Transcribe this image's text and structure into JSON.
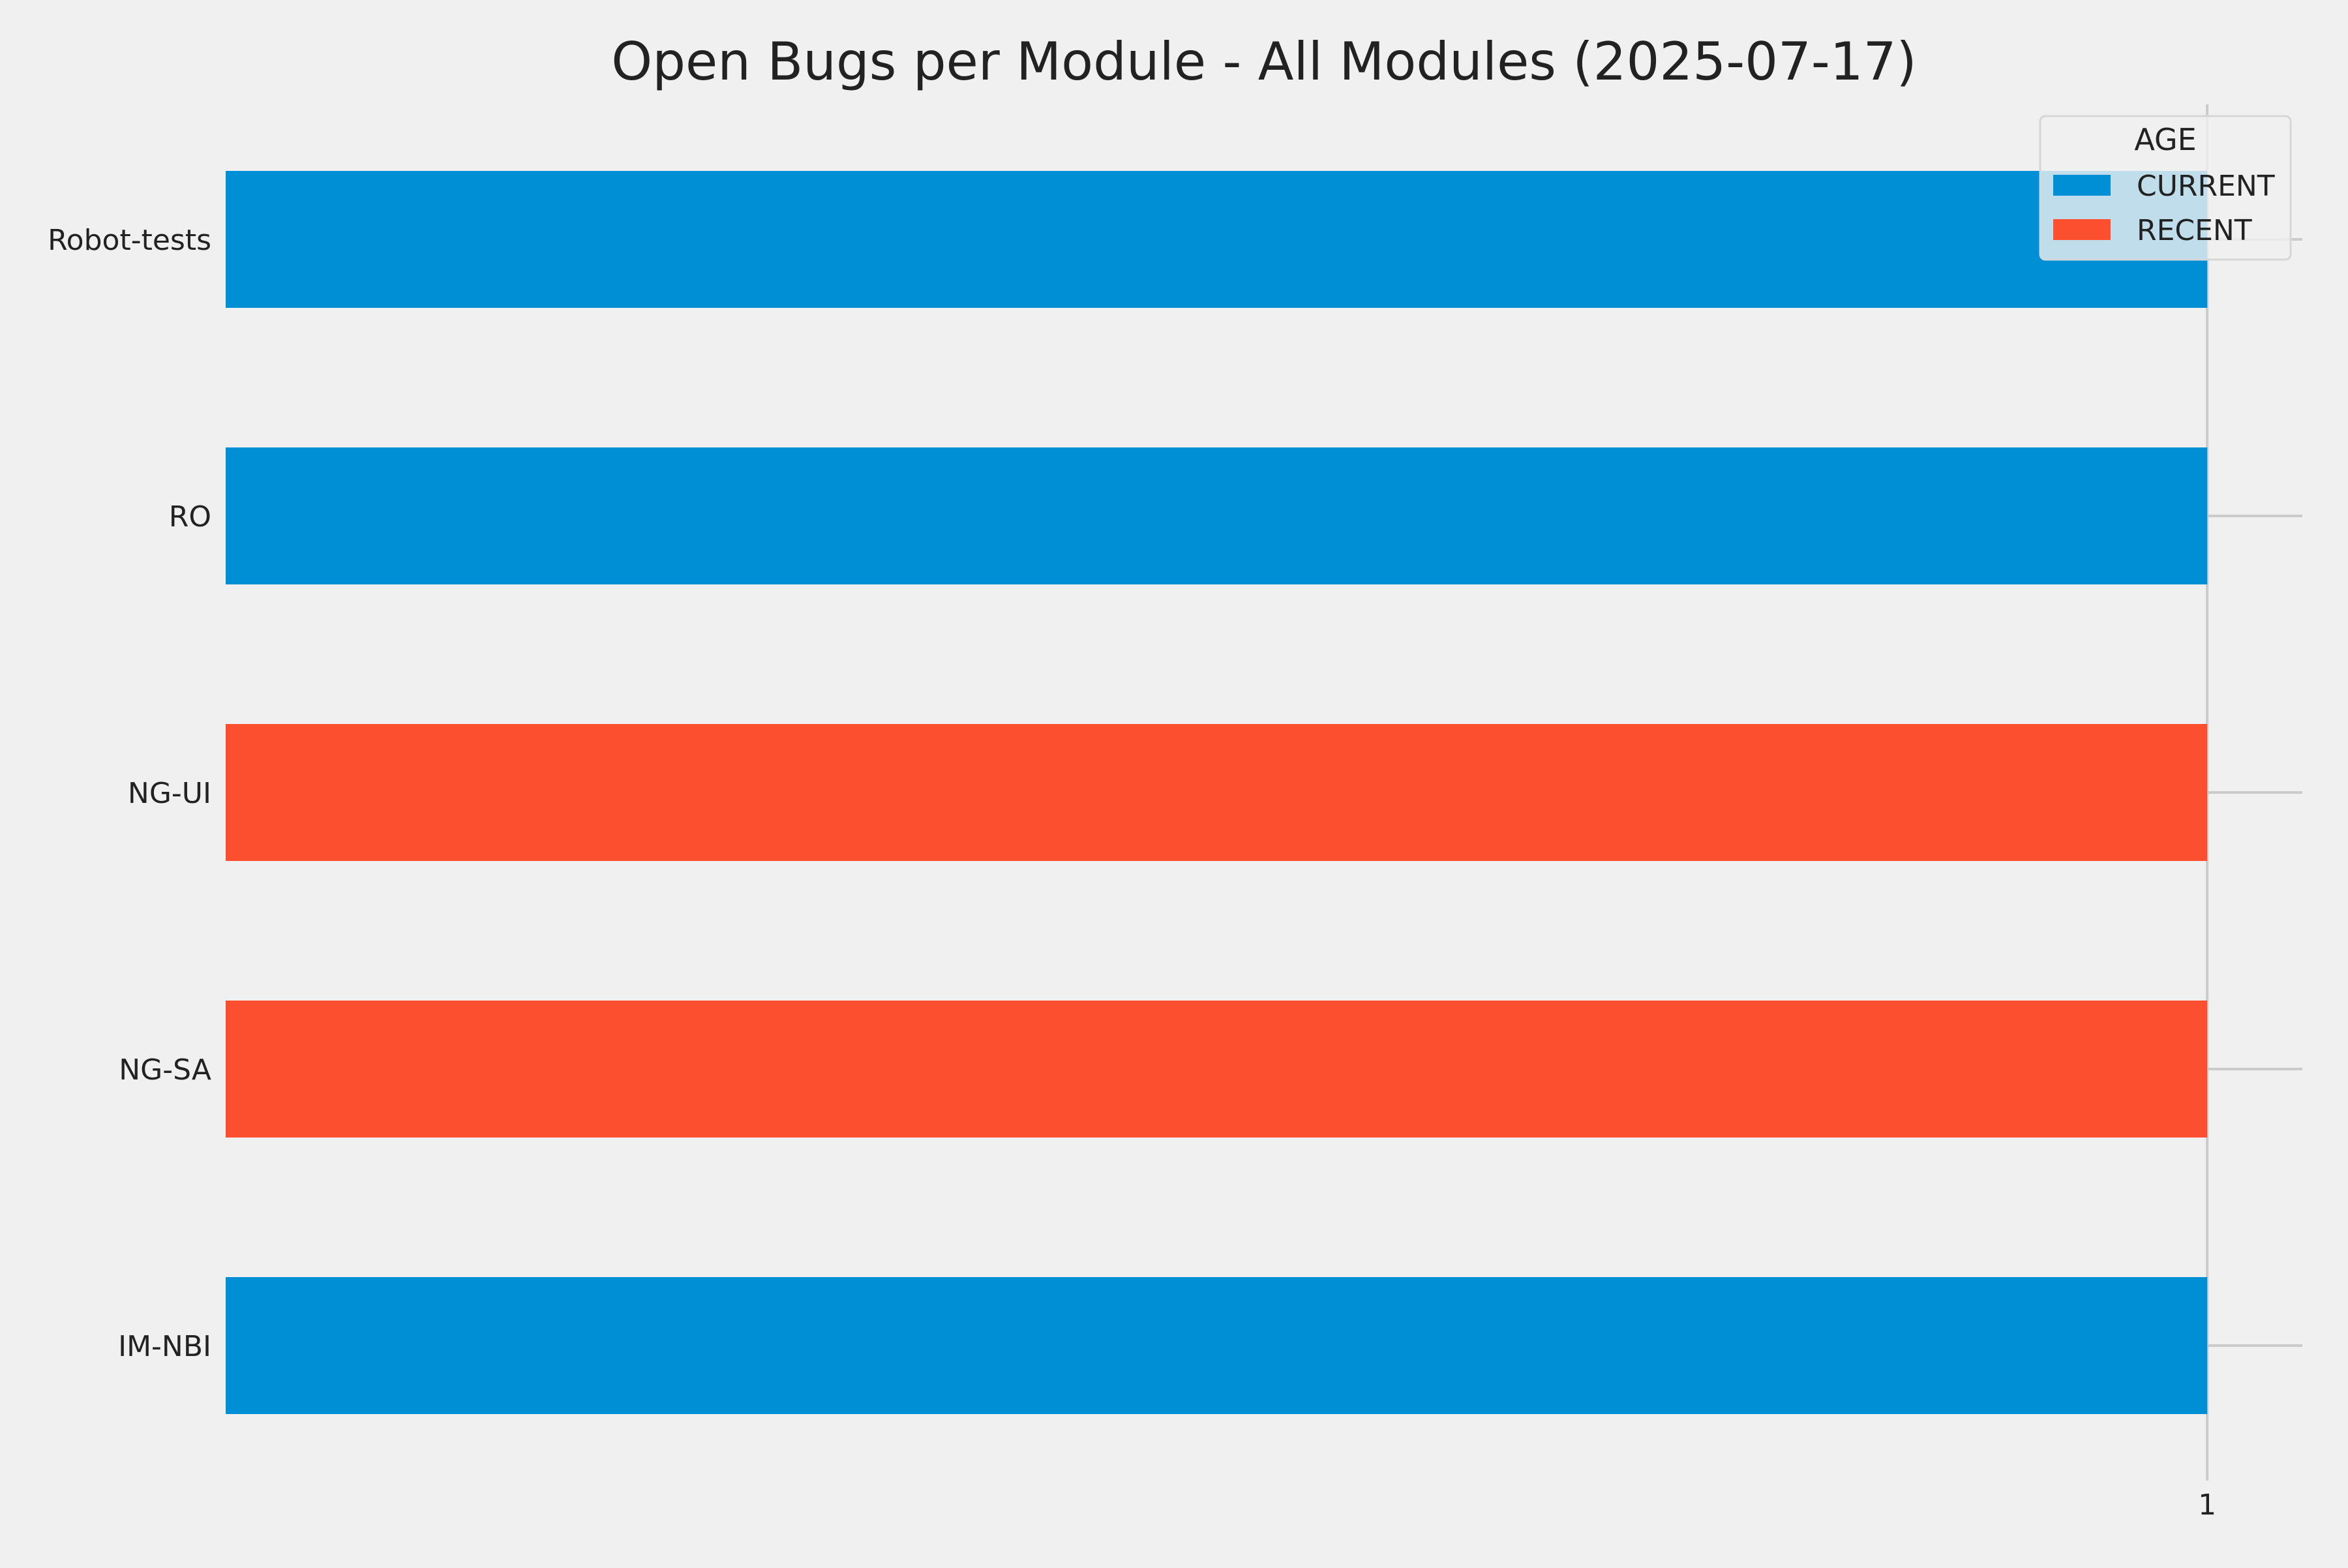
{
  "chart_data": {
    "type": "bar",
    "orientation": "horizontal",
    "title": "Open Bugs per Module - All Modules (2025-07-17)",
    "xlabel": "",
    "ylabel": "",
    "categories": [
      "Robot-tests",
      "RO",
      "NG-UI",
      "NG-SA",
      "IM-NBI"
    ],
    "values": [
      1,
      1,
      1,
      1,
      1
    ],
    "age": [
      "CURRENT",
      "CURRENT",
      "RECENT",
      "RECENT",
      "CURRENT"
    ],
    "x_ticks": [
      "1"
    ],
    "xlim": [
      0,
      1.048
    ],
    "legend": {
      "title": "AGE",
      "placement": "top-right",
      "entries": [
        {
          "label": "CURRENT",
          "color": "#008fd5"
        },
        {
          "label": "RECENT",
          "color": "#fc4f30"
        }
      ]
    },
    "grid": true,
    "colors": {
      "CURRENT": "#008fd5",
      "RECENT": "#fc4f30",
      "background": "#f0f0f0",
      "grid": "#cbcbcb",
      "text": "#222222"
    }
  }
}
